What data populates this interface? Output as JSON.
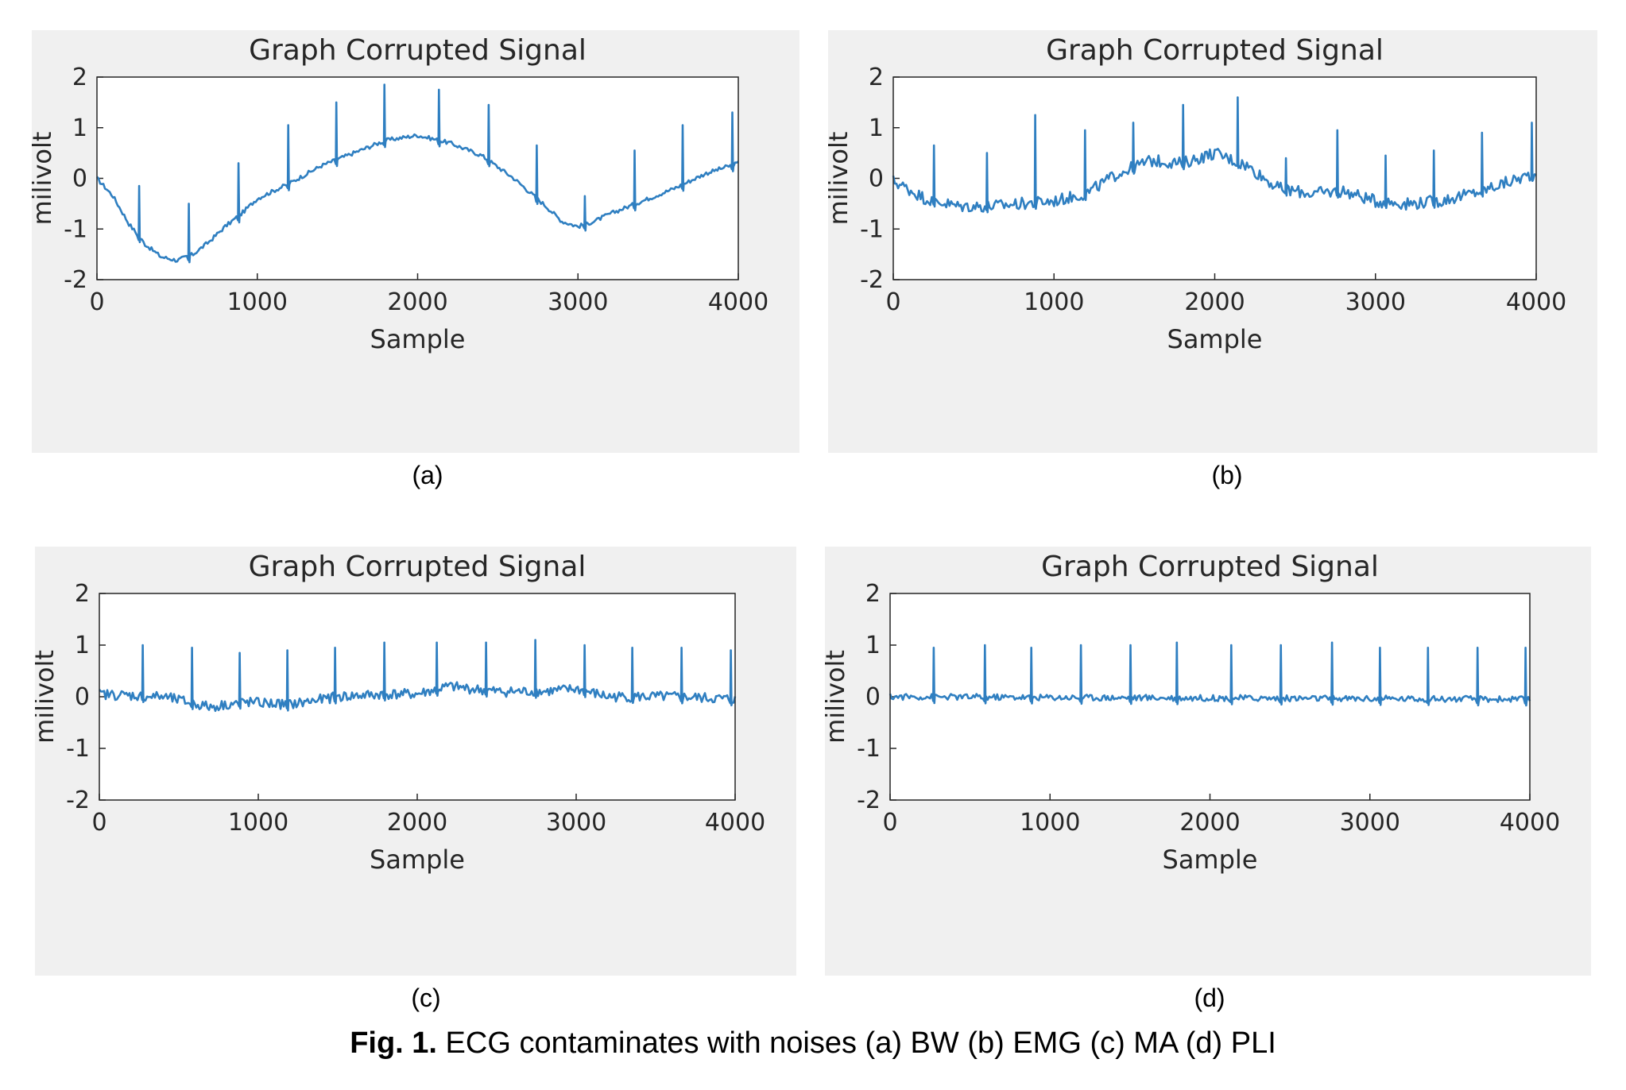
{
  "caption": {
    "prefix": "Fig. 1.",
    "text": " ECG contaminates with noises (a) BW (b) EMG (c) MA (d) PLI"
  },
  "line_color": "#2f7fc1",
  "chart_data": [
    {
      "panel_label": "(a)",
      "type": "line",
      "title": "Graph Corrupted Signal",
      "xlabel": "Sample",
      "ylabel": "milivolt",
      "xlim": [
        0,
        4000
      ],
      "ylim": [
        -2,
        2
      ],
      "xticks": [
        0,
        1000,
        2000,
        3000,
        4000
      ],
      "yticks": [
        -2,
        -1,
        0,
        1,
        2
      ],
      "baseline": {
        "x": [
          0,
          100,
          200,
          300,
          400,
          500,
          600,
          700,
          800,
          900,
          1000,
          1200,
          1400,
          1600,
          1800,
          2000,
          2200,
          2400,
          2600,
          2800,
          2900,
          3000,
          3100,
          3200,
          3400,
          3600,
          3800,
          4000
        ],
        "y": [
          0.0,
          -0.35,
          -0.9,
          -1.3,
          -1.55,
          -1.62,
          -1.5,
          -1.25,
          -0.95,
          -0.7,
          -0.4,
          -0.1,
          0.25,
          0.5,
          0.75,
          0.85,
          0.7,
          0.45,
          0.0,
          -0.55,
          -0.85,
          -0.95,
          -0.85,
          -0.7,
          -0.45,
          -0.2,
          0.1,
          0.3
        ]
      },
      "spike_samples": [
        260,
        570,
        880,
        1190,
        1490,
        1790,
        2130,
        2440,
        2740,
        3040,
        3350,
        3650,
        3960
      ],
      "spike_peaks": [
        -0.15,
        -0.5,
        0.3,
        1.05,
        1.5,
        1.85,
        1.75,
        1.45,
        0.65,
        -0.35,
        0.55,
        1.05,
        1.3
      ],
      "noise_amplitude": 0.04
    },
    {
      "panel_label": "(b)",
      "type": "line",
      "title": "Graph Corrupted Signal",
      "xlabel": "Sample",
      "ylabel": "milivolt",
      "xlim": [
        0,
        4000
      ],
      "ylim": [
        -2,
        2
      ],
      "xticks": [
        0,
        1000,
        2000,
        3000,
        4000
      ],
      "yticks": [
        -2,
        -1,
        0,
        1,
        2
      ],
      "baseline": {
        "x": [
          0,
          200,
          400,
          600,
          800,
          1000,
          1200,
          1400,
          1600,
          1800,
          2000,
          2200,
          2400,
          2600,
          2800,
          3000,
          3200,
          3400,
          3600,
          3800,
          4000
        ],
        "y": [
          -0.05,
          -0.4,
          -0.55,
          -0.55,
          -0.5,
          -0.45,
          -0.3,
          0.1,
          0.35,
          0.3,
          0.5,
          0.25,
          -0.2,
          -0.3,
          -0.25,
          -0.45,
          -0.5,
          -0.45,
          -0.3,
          -0.1,
          0.1
        ]
      },
      "spike_samples": [
        250,
        580,
        880,
        1190,
        1490,
        1800,
        2140,
        2440,
        2760,
        3060,
        3360,
        3660,
        3970
      ],
      "spike_peaks": [
        0.65,
        0.5,
        1.25,
        0.95,
        1.1,
        1.45,
        1.6,
        0.4,
        0.95,
        0.45,
        0.55,
        0.9,
        1.1
      ],
      "noise_amplitude": 0.12
    },
    {
      "panel_label": "(c)",
      "type": "line",
      "title": "Graph Corrupted Signal",
      "xlabel": "Sample",
      "ylabel": "milivolt",
      "xlim": [
        0,
        4000
      ],
      "ylim": [
        -2,
        2
      ],
      "xticks": [
        0,
        1000,
        2000,
        3000,
        4000
      ],
      "yticks": [
        -2,
        -1,
        0,
        1,
        2
      ],
      "baseline": {
        "x": [
          0,
          400,
          700,
          900,
          1200,
          1500,
          1800,
          2000,
          2200,
          2500,
          2800,
          3000,
          3200,
          3600,
          4000
        ],
        "y": [
          0.05,
          0.0,
          -0.2,
          -0.1,
          -0.15,
          0.0,
          0.05,
          0.05,
          0.2,
          0.1,
          0.1,
          0.15,
          0.0,
          0.0,
          -0.05
        ]
      },
      "spike_samples": [
        270,
        580,
        880,
        1180,
        1480,
        1790,
        2120,
        2430,
        2740,
        3050,
        3350,
        3660,
        3970
      ],
      "spike_peaks": [
        1.0,
        0.95,
        0.85,
        0.9,
        0.95,
        1.05,
        1.05,
        1.05,
        1.1,
        1.0,
        0.95,
        0.95,
        0.9
      ],
      "noise_amplitude": 0.1
    },
    {
      "panel_label": "(d)",
      "type": "line",
      "title": "Graph Corrupted Signal",
      "xlabel": "Sample",
      "ylabel": "milivolt",
      "xlim": [
        0,
        4000
      ],
      "ylim": [
        -2,
        2
      ],
      "xticks": [
        0,
        1000,
        2000,
        3000,
        4000
      ],
      "yticks": [
        -2,
        -1,
        0,
        1,
        2
      ],
      "baseline": {
        "x": [
          0,
          4000
        ],
        "y": [
          0.0,
          -0.05
        ]
      },
      "spike_samples": [
        270,
        590,
        880,
        1190,
        1500,
        1790,
        2130,
        2440,
        2760,
        3060,
        3360,
        3670,
        3970
      ],
      "spike_peaks": [
        0.95,
        1.0,
        0.95,
        1.0,
        1.0,
        1.05,
        1.0,
        1.0,
        1.05,
        0.95,
        0.95,
        0.95,
        0.95
      ],
      "noise_amplitude": 0.06
    }
  ]
}
